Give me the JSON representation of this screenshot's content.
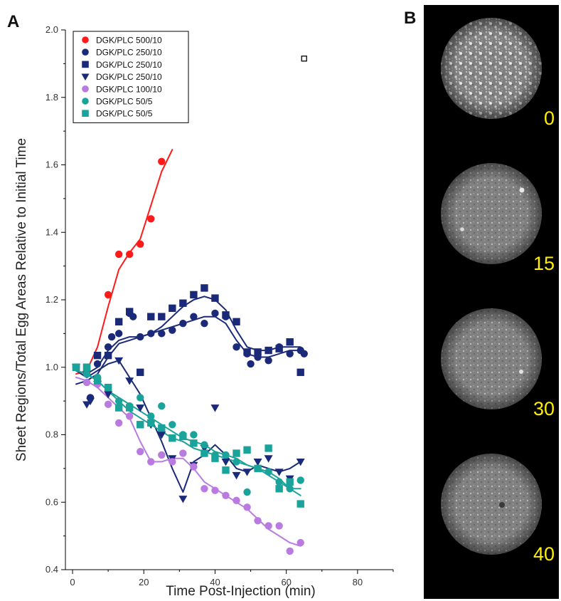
{
  "panels": {
    "a_letter": "A",
    "b_letter": "B"
  },
  "chart_data": {
    "type": "scatter",
    "xlabel": "Time Post-Injection (min)",
    "ylabel": "Sheet Regions/Total Egg Areas Relative to Initial Time",
    "xlim": [
      -2,
      90
    ],
    "ylim": [
      0.4,
      2.0
    ],
    "xticks": [
      "0",
      "20",
      "40",
      "60",
      "80"
    ],
    "yticks": [
      "0.4",
      "0.6",
      "0.8",
      "1.0",
      "1.2",
      "1.4",
      "1.6",
      "1.8",
      "2.0"
    ],
    "grid": false,
    "legend_position": "top-left",
    "extra_point": {
      "x": 65,
      "y": 1.915,
      "marker": "open-square",
      "color": "#000000"
    },
    "series": [
      {
        "name": "DGK/PLC 500/10",
        "color": "#ff1a1a",
        "marker": "circle",
        "x": [
          1,
          4,
          10,
          13,
          16,
          19,
          22,
          25
        ],
        "y": [
          1.0,
          0.99,
          1.215,
          1.335,
          1.335,
          1.365,
          1.44,
          1.61
        ],
        "fit_x": [
          1,
          4,
          7,
          10,
          13,
          16,
          19,
          22,
          25,
          28
        ],
        "fit_y": [
          0.98,
          0.99,
          1.06,
          1.18,
          1.29,
          1.34,
          1.38,
          1.48,
          1.58,
          1.645
        ]
      },
      {
        "name": "DGK/PLC 250/10",
        "color": "#1a2a78",
        "marker": "circle",
        "x": [
          1,
          4,
          5,
          7,
          10,
          11,
          13,
          16,
          17,
          19,
          22,
          25,
          28,
          31,
          34,
          37,
          40,
          43,
          46,
          49,
          50,
          52,
          55,
          58,
          61,
          64,
          65
        ],
        "y": [
          1.0,
          0.98,
          0.91,
          1.01,
          1.06,
          1.09,
          1.1,
          1.16,
          1.15,
          1.09,
          1.1,
          1.1,
          1.11,
          1.13,
          1.15,
          1.13,
          1.16,
          1.15,
          1.06,
          1.04,
          1.01,
          1.03,
          1.02,
          1.06,
          1.04,
          1.05,
          1.04
        ],
        "fit_x": [
          1,
          4,
          7,
          10,
          13,
          16,
          19,
          22,
          25,
          28,
          31,
          34,
          37,
          40,
          43,
          46,
          49,
          52,
          55,
          58,
          61,
          64
        ],
        "fit_y": [
          0.99,
          0.98,
          1.0,
          1.05,
          1.08,
          1.09,
          1.09,
          1.1,
          1.11,
          1.12,
          1.13,
          1.14,
          1.15,
          1.15,
          1.13,
          1.08,
          1.04,
          1.03,
          1.03,
          1.04,
          1.05,
          1.05
        ]
      },
      {
        "name": "DGK/PLC 250/10",
        "color": "#1a2a78",
        "marker": "square",
        "x": [
          1,
          4,
          7,
          10,
          13,
          16,
          19,
          22,
          25,
          28,
          31,
          34,
          37,
          40,
          43,
          46,
          49,
          52,
          55,
          58,
          61,
          64
        ],
        "y": [
          1.0,
          1.0,
          1.035,
          1.035,
          1.135,
          1.165,
          0.985,
          1.15,
          1.15,
          1.175,
          1.19,
          1.215,
          1.235,
          1.205,
          1.155,
          1.135,
          1.045,
          1.045,
          1.05,
          1.055,
          1.075,
          0.985
        ],
        "fit_x": [
          1,
          4,
          7,
          10,
          13,
          16,
          19,
          22,
          25,
          28,
          31,
          34,
          37,
          40,
          43,
          46,
          49,
          52,
          55,
          58,
          61,
          64
        ],
        "fit_y": [
          0.95,
          0.96,
          0.98,
          1.03,
          1.07,
          1.08,
          1.09,
          1.1,
          1.12,
          1.15,
          1.18,
          1.2,
          1.21,
          1.2,
          1.17,
          1.11,
          1.06,
          1.05,
          1.05,
          1.06,
          1.06,
          1.06
        ]
      },
      {
        "name": "DGK/PLC 250/10",
        "color": "#1a2a78",
        "marker": "triangle-down",
        "x": [
          1,
          4,
          5,
          7,
          10,
          13,
          16,
          19,
          22,
          25,
          28,
          31,
          34,
          37,
          40,
          43,
          46,
          49,
          52,
          55,
          58,
          61,
          64
        ],
        "y": [
          1.0,
          0.89,
          0.9,
          0.95,
          0.92,
          1.02,
          0.96,
          0.88,
          0.83,
          0.8,
          0.73,
          0.61,
          0.71,
          0.76,
          0.88,
          0.72,
          0.68,
          0.69,
          0.72,
          0.73,
          0.69,
          0.67,
          0.72
        ],
        "fit_x": [
          1,
          4,
          7,
          10,
          13,
          16,
          19,
          22,
          25,
          28,
          31,
          34,
          37,
          40,
          43,
          46,
          49,
          52,
          55,
          58,
          61,
          64
        ],
        "fit_y": [
          0.99,
          0.97,
          0.99,
          1.01,
          1.02,
          0.97,
          0.92,
          0.85,
          0.78,
          0.7,
          0.63,
          0.72,
          0.74,
          0.77,
          0.74,
          0.7,
          0.69,
          0.71,
          0.7,
          0.69,
          0.7,
          0.72
        ]
      },
      {
        "name": "DGK/PLC 100/10",
        "color": "#b97be0",
        "marker": "circle",
        "x": [
          1,
          4,
          7,
          10,
          13,
          16,
          19,
          22,
          25,
          28,
          31,
          34,
          37,
          40,
          43,
          46,
          49,
          52,
          55,
          58,
          61,
          64
        ],
        "y": [
          1.0,
          0.955,
          0.95,
          0.89,
          0.835,
          0.855,
          0.75,
          0.72,
          0.74,
          0.72,
          0.745,
          0.705,
          0.64,
          0.635,
          0.62,
          0.605,
          0.585,
          0.545,
          0.53,
          0.53,
          0.455,
          0.48
        ],
        "fit_x": [
          1,
          4,
          7,
          10,
          13,
          16,
          19,
          22,
          25,
          28,
          31,
          34,
          37,
          40,
          43,
          46,
          49,
          52,
          55,
          58,
          61,
          64
        ],
        "fit_y": [
          0.97,
          0.96,
          0.94,
          0.91,
          0.88,
          0.85,
          0.78,
          0.72,
          0.72,
          0.73,
          0.73,
          0.7,
          0.66,
          0.64,
          0.62,
          0.6,
          0.58,
          0.55,
          0.52,
          0.5,
          0.48,
          0.47
        ]
      },
      {
        "name": "DGK/PLC 50/5",
        "color": "#1aa39a",
        "marker": "circle",
        "x": [
          1,
          4,
          7,
          10,
          13,
          16,
          19,
          22,
          25,
          28,
          31,
          34,
          37,
          40,
          43,
          46,
          49,
          52,
          55,
          58,
          61,
          64
        ],
        "y": [
          1.0,
          0.98,
          0.97,
          0.94,
          0.9,
          0.885,
          0.91,
          0.855,
          0.885,
          0.83,
          0.8,
          0.8,
          0.77,
          0.74,
          0.74,
          0.72,
          0.63,
          0.7,
          0.69,
          0.66,
          0.64,
          0.665
        ],
        "fit_x": [
          1,
          4,
          7,
          10,
          13,
          16,
          19,
          22,
          25,
          28,
          31,
          34,
          37,
          40,
          43,
          46,
          49,
          52,
          55,
          58,
          61,
          64
        ],
        "fit_y": [
          0.99,
          0.98,
          0.96,
          0.93,
          0.91,
          0.89,
          0.87,
          0.85,
          0.83,
          0.81,
          0.79,
          0.78,
          0.77,
          0.75,
          0.74,
          0.73,
          0.71,
          0.7,
          0.68,
          0.66,
          0.64,
          0.64
        ]
      },
      {
        "name": "DGK/PLC 50/5",
        "color": "#1aa39a",
        "marker": "square",
        "x": [
          1,
          4,
          7,
          10,
          13,
          16,
          19,
          22,
          25,
          28,
          31,
          34,
          37,
          40,
          43,
          46,
          49,
          52,
          55,
          58,
          61,
          64
        ],
        "y": [
          1.0,
          1.0,
          0.96,
          0.94,
          0.88,
          0.88,
          0.83,
          0.835,
          0.82,
          0.79,
          0.795,
          0.775,
          0.745,
          0.73,
          0.695,
          0.745,
          0.755,
          0.7,
          0.76,
          0.64,
          0.66,
          0.595
        ],
        "fit_x": [
          1,
          4,
          7,
          10,
          13,
          16,
          19,
          22,
          25,
          28,
          31,
          34,
          37,
          40,
          43,
          46,
          49,
          52,
          55,
          58,
          61,
          64
        ],
        "fit_y": [
          0.99,
          0.98,
          0.96,
          0.93,
          0.9,
          0.87,
          0.85,
          0.83,
          0.81,
          0.79,
          0.78,
          0.76,
          0.75,
          0.74,
          0.73,
          0.72,
          0.71,
          0.7,
          0.69,
          0.67,
          0.64,
          0.62
        ]
      }
    ]
  },
  "image_panel": {
    "frames": [
      {
        "label": "0"
      },
      {
        "label": "15"
      },
      {
        "label": "30"
      },
      {
        "label": "40"
      }
    ]
  }
}
